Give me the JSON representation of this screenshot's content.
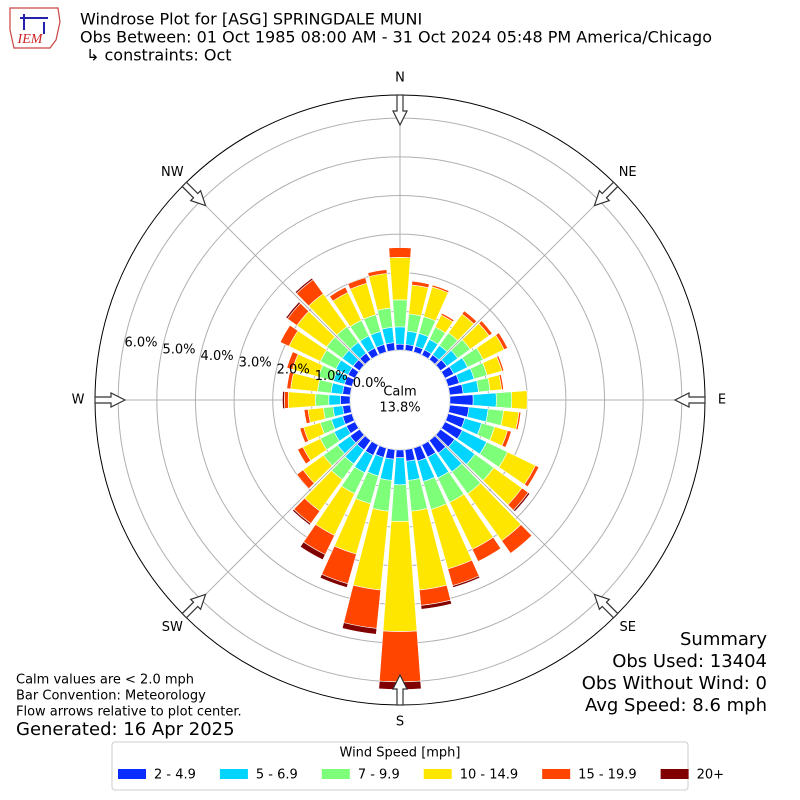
{
  "chart_data": {
    "type": "windrose",
    "title": "Windrose Plot for [ASG] SPRINGDALE MUNI",
    "subtitle": "Obs Between: 01 Oct 1985 08:00 AM - 31 Oct 2024 05:48 PM America/Chicago",
    "constraints": "↳ constraints: Oct",
    "logo_text": "IEM",
    "direction_labels": [
      "N",
      "NE",
      "E",
      "SE",
      "S",
      "SW",
      "W",
      "NW"
    ],
    "x": [
      0,
      10,
      20,
      30,
      40,
      50,
      60,
      70,
      80,
      90,
      100,
      110,
      120,
      130,
      140,
      150,
      160,
      170,
      180,
      190,
      200,
      210,
      220,
      230,
      240,
      250,
      260,
      270,
      280,
      290,
      300,
      310,
      320,
      330,
      340,
      350
    ],
    "rlim": [
      0,
      6.6
    ],
    "rticks": [
      {
        "value": 0,
        "label": "0.0%"
      },
      {
        "value": 1,
        "label": "1.0%"
      },
      {
        "value": 2,
        "label": "2.0%"
      },
      {
        "value": 3,
        "label": "3.0%"
      },
      {
        "value": 4,
        "label": "4.0%"
      },
      {
        "value": 5,
        "label": "5.0%"
      },
      {
        "value": 6,
        "label": "6.0%"
      }
    ],
    "grid": true,
    "calm_label": "Calm",
    "calm_value": 13.8,
    "calm_value_label": "13.8%",
    "legend_title": "Wind Speed [mph]",
    "series": [
      {
        "name": "2 - 4.9",
        "color": "#0a2cff",
        "values": [
          0.15,
          0.15,
          0.15,
          0.15,
          0.15,
          0.2,
          0.25,
          0.3,
          0.35,
          0.6,
          0.5,
          0.45,
          0.5,
          0.45,
          0.4,
          0.35,
          0.35,
          0.3,
          0.2,
          0.25,
          0.25,
          0.3,
          0.3,
          0.3,
          0.25,
          0.25,
          0.2,
          0.25,
          0.2,
          0.2,
          0.2,
          0.2,
          0.2,
          0.2,
          0.2,
          0.2
        ]
      },
      {
        "name": "5 - 6.9",
        "color": "#00d4ff",
        "values": [
          0.45,
          0.35,
          0.35,
          0.3,
          0.3,
          0.35,
          0.4,
          0.4,
          0.4,
          0.6,
          0.5,
          0.45,
          0.7,
          0.65,
          0.6,
          0.6,
          0.55,
          0.5,
          0.7,
          0.55,
          0.5,
          0.5,
          0.45,
          0.4,
          0.35,
          0.3,
          0.25,
          0.3,
          0.3,
          0.3,
          0.35,
          0.35,
          0.35,
          0.35,
          0.35,
          0.4
        ]
      },
      {
        "name": "7 - 9.9",
        "color": "#7dff7a",
        "values": [
          0.7,
          0.45,
          0.45,
          0.35,
          0.4,
          0.4,
          0.45,
          0.35,
          0.3,
          0.4,
          0.4,
          0.35,
          0.6,
          0.6,
          0.7,
          0.7,
          0.75,
          0.8,
          0.95,
          0.8,
          0.75,
          0.6,
          0.5,
          0.45,
          0.4,
          0.3,
          0.25,
          0.35,
          0.35,
          0.4,
          0.45,
          0.5,
          0.5,
          0.45,
          0.45,
          0.5
        ]
      },
      {
        "name": "10 - 14.9",
        "color": "#ffe600",
        "values": [
          1.1,
          0.75,
          0.8,
          0.35,
          0.6,
          0.6,
          0.6,
          0.4,
          0.3,
          0.4,
          0.4,
          0.35,
          0.8,
          0.9,
          1.5,
          1.35,
          1.6,
          2.05,
          2.85,
          2.05,
          1.35,
          1.2,
          1.0,
          0.65,
          0.5,
          0.45,
          0.4,
          0.7,
          0.7,
          0.7,
          0.9,
          0.95,
          1.05,
          0.8,
          0.85,
          0.9
        ]
      },
      {
        "name": "15 - 19.9",
        "color": "#ff4500",
        "values": [
          0.25,
          0.1,
          0.05,
          0.05,
          0.1,
          0.1,
          0.1,
          0.05,
          0.05,
          0,
          0.05,
          0.1,
          0.1,
          0.2,
          0.4,
          0.35,
          0.45,
          0.4,
          1.3,
          1.0,
          0.8,
          0.55,
          0.4,
          0.2,
          0.15,
          0.1,
          0.1,
          0.1,
          0.1,
          0.15,
          0.25,
          0.3,
          0.45,
          0.15,
          0.15,
          0.1
        ]
      },
      {
        "name": "20+",
        "color": "#800000",
        "values": [
          0,
          0,
          0,
          0,
          0,
          0,
          0,
          0,
          0,
          0,
          0,
          0,
          0,
          0.05,
          0,
          0,
          0.05,
          0.1,
          0.2,
          0.15,
          0.1,
          0.15,
          0.05,
          0,
          0,
          0,
          0,
          0.05,
          0,
          0,
          0,
          0.05,
          0.05,
          0,
          0,
          0
        ]
      }
    ],
    "summary": [
      "Summary",
      "Obs Used: 13404",
      "Obs Without Wind: 0",
      "Avg Speed: 8.6 mph"
    ],
    "notes": [
      "Calm values are < 2.0 mph",
      "Bar Convention: Meteorology",
      "Flow arrows relative to plot center."
    ],
    "generated": "Generated: 16 Apr 2025"
  }
}
